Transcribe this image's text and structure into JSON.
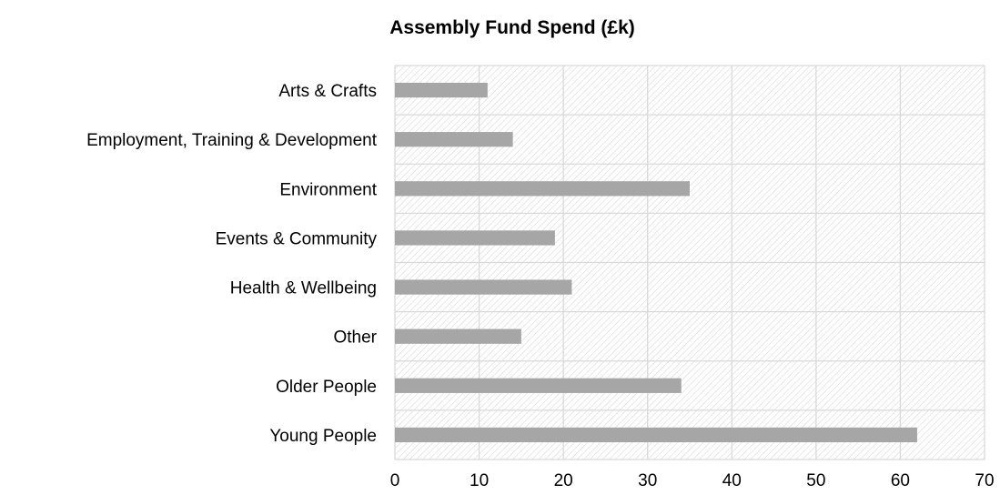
{
  "chart_data": {
    "type": "bar",
    "orientation": "horizontal",
    "title": "Assembly Fund Spend (£k)",
    "xlabel": "",
    "ylabel": "",
    "categories": [
      "Arts & Crafts",
      "Employment, Training & Development",
      "Environment",
      "Events & Community",
      "Health & Wellbeing",
      "Other",
      "Older People",
      "Young People"
    ],
    "values": [
      11,
      14,
      35,
      19,
      21,
      15,
      34,
      62
    ],
    "xlim": [
      0,
      70
    ],
    "xticks": [
      0,
      10,
      20,
      30,
      40,
      50,
      60,
      70
    ],
    "grid": true,
    "legend": "none",
    "colors": {
      "bar": "#a6a6a6",
      "grid": "#d9d9d9",
      "plot_hatch": "#e3e3e3"
    }
  }
}
